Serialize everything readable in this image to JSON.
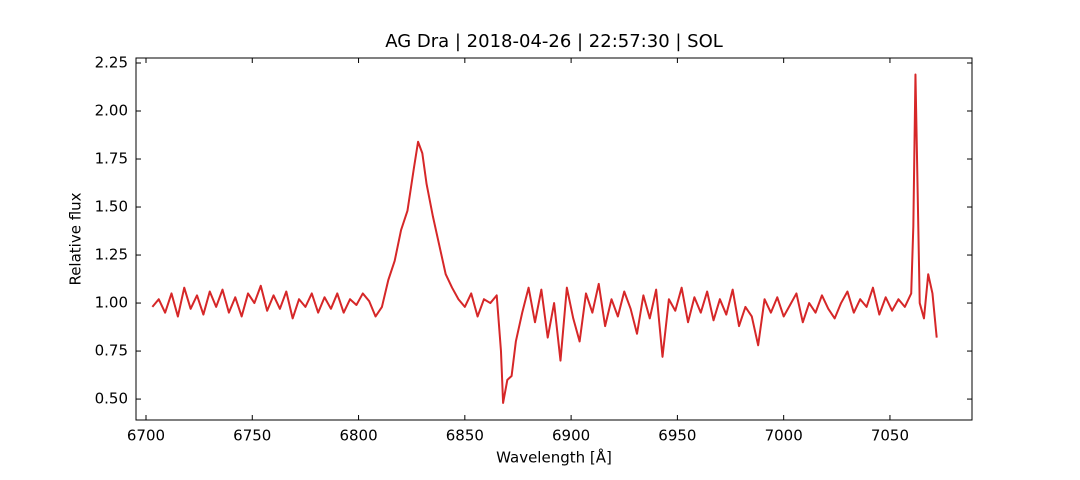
{
  "chart_data": {
    "type": "line",
    "title": "AG Dra | 2018-04-26 | 22:57:30 | SOL",
    "xlabel": "Wavelength [Å]",
    "ylabel": "Relative flux",
    "xlim": [
      6695.3,
      7088.6
    ],
    "ylim": [
      0.391,
      2.276
    ],
    "xticks": [
      6700,
      6750,
      6800,
      6850,
      6900,
      6950,
      7000,
      7050
    ],
    "yticks": [
      {
        "value": 0.5,
        "label": "0.50"
      },
      {
        "value": 0.75,
        "label": "0.75"
      },
      {
        "value": 1,
        "label": "1.00"
      },
      {
        "value": 1.25,
        "label": "1.25"
      },
      {
        "value": 1.5,
        "label": "1.50"
      },
      {
        "value": 1.75,
        "label": "1.75"
      },
      {
        "value": 2,
        "label": "2.00"
      },
      {
        "value": 2.25,
        "label": "2.25"
      }
    ],
    "grid": false,
    "x": [
      6703,
      6706,
      6709,
      6712,
      6715,
      6718,
      6721,
      6724,
      6727,
      6730,
      6733,
      6736,
      6739,
      6742,
      6745,
      6748,
      6751,
      6754,
      6757,
      6760,
      6763,
      6766,
      6769,
      6772,
      6775,
      6778,
      6781,
      6784,
      6787,
      6790,
      6793,
      6796,
      6799,
      6802,
      6805,
      6808,
      6811,
      6814,
      6817,
      6820,
      6823,
      6826,
      6828,
      6830,
      6832,
      6835,
      6838,
      6841,
      6844,
      6847,
      6850,
      6853,
      6856,
      6859,
      6862,
      6865,
      6867,
      6868,
      6870,
      6872,
      6874,
      6877,
      6880,
      6883,
      6886,
      6889,
      6892,
      6895,
      6898,
      6901,
      6904,
      6907,
      6910,
      6913,
      6916,
      6919,
      6922,
      6925,
      6928,
      6931,
      6934,
      6937,
      6940,
      6943,
      6946,
      6949,
      6952,
      6955,
      6958,
      6961,
      6964,
      6967,
      6970,
      6973,
      6976,
      6979,
      6982,
      6985,
      6988,
      6991,
      6994,
      6997,
      7000,
      7003,
      7006,
      7009,
      7012,
      7015,
      7018,
      7021,
      7024,
      7027,
      7030,
      7033,
      7036,
      7039,
      7042,
      7045,
      7048,
      7051,
      7054,
      7057,
      7060,
      7061,
      7062,
      7063,
      7064,
      7066,
      7068,
      7070,
      7072
    ],
    "series": [
      {
        "color": "#d62728",
        "values": [
          0.98,
          1.02,
          0.95,
          1.05,
          0.93,
          1.08,
          0.97,
          1.04,
          0.94,
          1.06,
          0.98,
          1.07,
          0.95,
          1.03,
          0.93,
          1.05,
          1.0,
          1.09,
          0.96,
          1.04,
          0.97,
          1.06,
          0.92,
          1.02,
          0.98,
          1.05,
          0.95,
          1.03,
          0.97,
          1.05,
          0.95,
          1.02,
          0.99,
          1.05,
          1.01,
          0.93,
          0.98,
          1.12,
          1.22,
          1.38,
          1.48,
          1.7,
          1.84,
          1.78,
          1.62,
          1.45,
          1.3,
          1.15,
          1.08,
          1.02,
          0.98,
          1.05,
          0.93,
          1.02,
          1.0,
          1.04,
          0.75,
          0.48,
          0.6,
          0.62,
          0.8,
          0.95,
          1.08,
          0.9,
          1.07,
          0.82,
          1.0,
          0.7,
          1.08,
          0.92,
          0.8,
          1.05,
          0.95,
          1.1,
          0.88,
          1.02,
          0.93,
          1.06,
          0.97,
          0.84,
          1.04,
          0.92,
          1.07,
          0.72,
          1.02,
          0.96,
          1.08,
          0.9,
          1.03,
          0.95,
          1.06,
          0.91,
          1.02,
          0.94,
          1.07,
          0.88,
          0.98,
          0.93,
          0.78,
          1.02,
          0.95,
          1.03,
          0.93,
          0.99,
          1.05,
          0.9,
          1.0,
          0.95,
          1.04,
          0.97,
          0.92,
          1.0,
          1.06,
          0.95,
          1.02,
          0.98,
          1.08,
          0.94,
          1.03,
          0.96,
          1.02,
          0.98,
          1.05,
          1.4,
          2.19,
          1.6,
          1.0,
          0.92,
          1.15,
          1.05,
          0.82
        ]
      }
    ]
  }
}
